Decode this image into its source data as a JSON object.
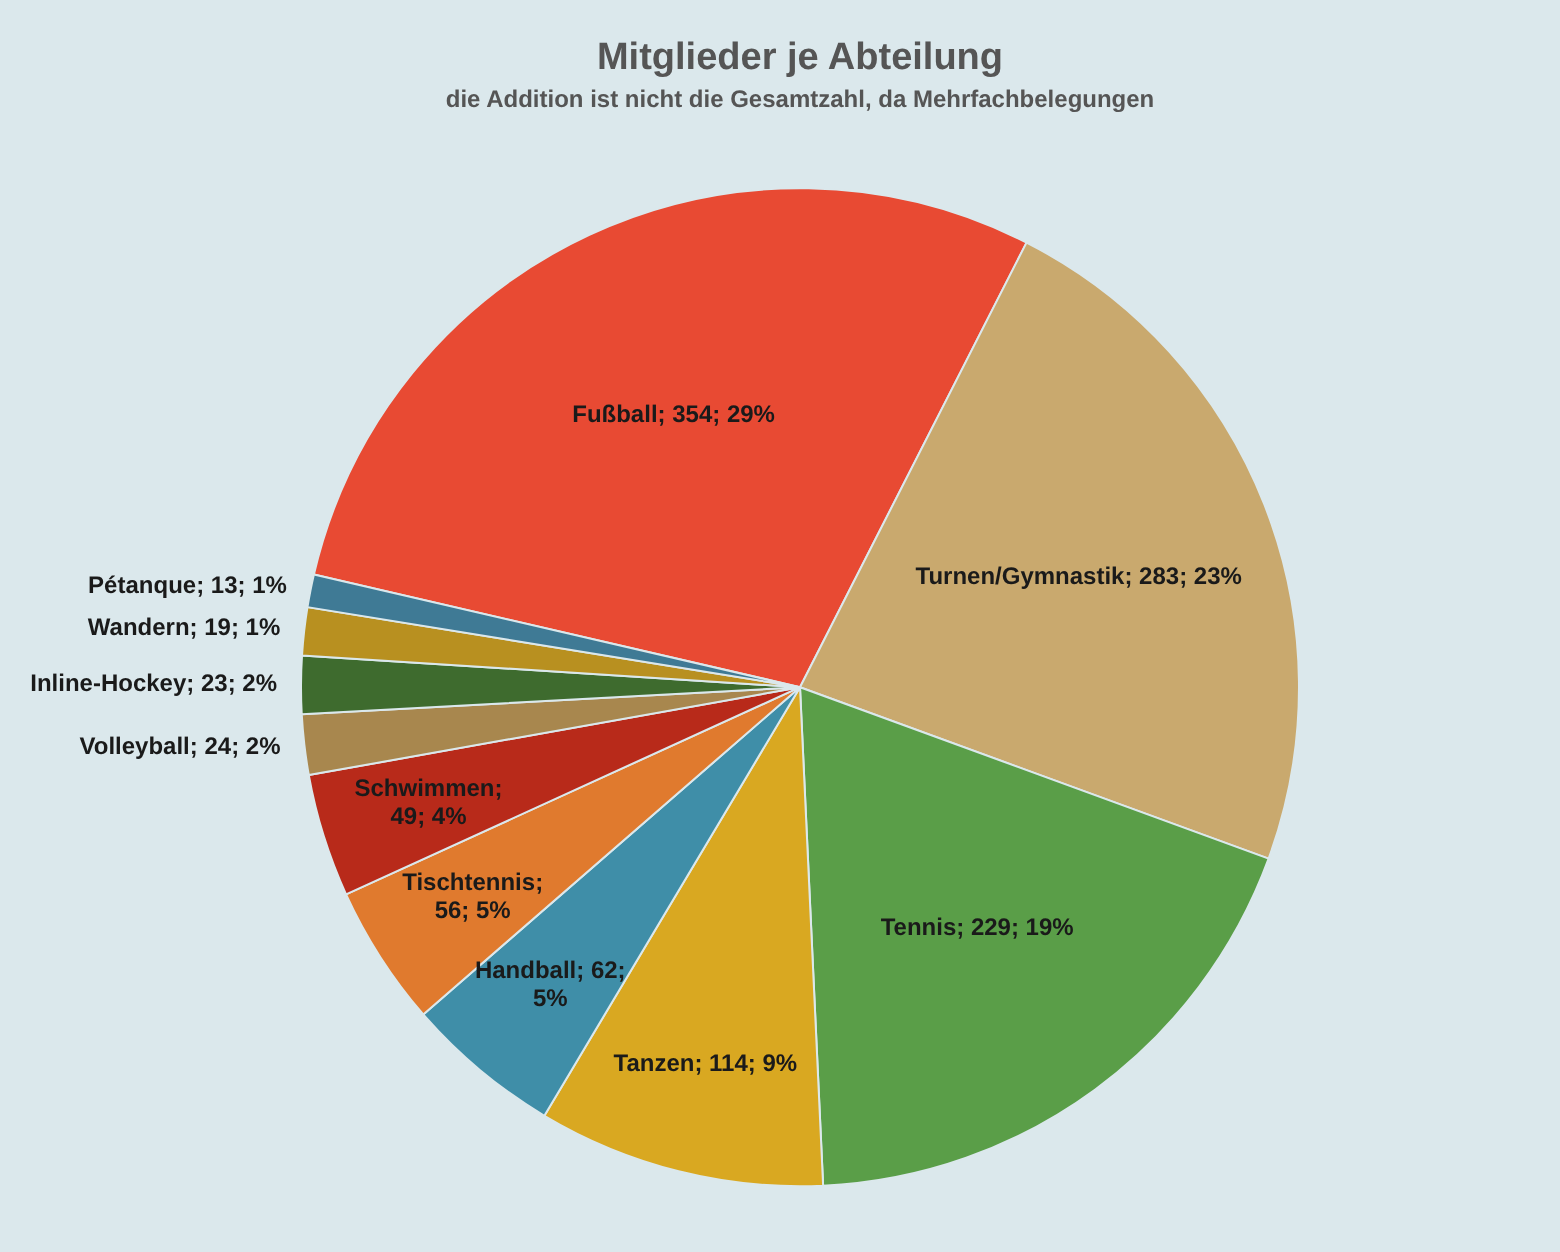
{
  "chart_data": {
    "type": "pie",
    "title": "Mitglieder je Abteilung",
    "subtitle": "die Addition ist nicht die Gesamtzahl, da Mehrfachbelegungen",
    "categories": [
      "Fußball",
      "Turnen/Gymnastik",
      "Tennis",
      "Tanzen",
      "Handball",
      "Tischtennis",
      "Schwimmen",
      "Volleyball",
      "Inline-Hockey",
      "Wandern",
      "Pétanque"
    ],
    "values": [
      354,
      283,
      229,
      114,
      62,
      56,
      49,
      24,
      23,
      19,
      13
    ],
    "value_labels": [
      "; 354; 29%",
      "; 283; 23%",
      "; 229; 19%",
      "; 114; 9%",
      "; 62; 5%",
      "; 56; 5%",
      "; 49; 4%",
      "; 24; 2%",
      "; 23; 2%",
      "; 19; 1%",
      "; 13; 1%"
    ],
    "colors": [
      "#e84a33",
      "#c9a96e",
      "#5a9e48",
      "#d9a821",
      "#3f8ea8",
      "#e07a2e",
      "#b82a1a",
      "#a8874e",
      "#3e6b2e",
      "#b89020",
      "#3f7a95"
    ],
    "legend": false
  }
}
